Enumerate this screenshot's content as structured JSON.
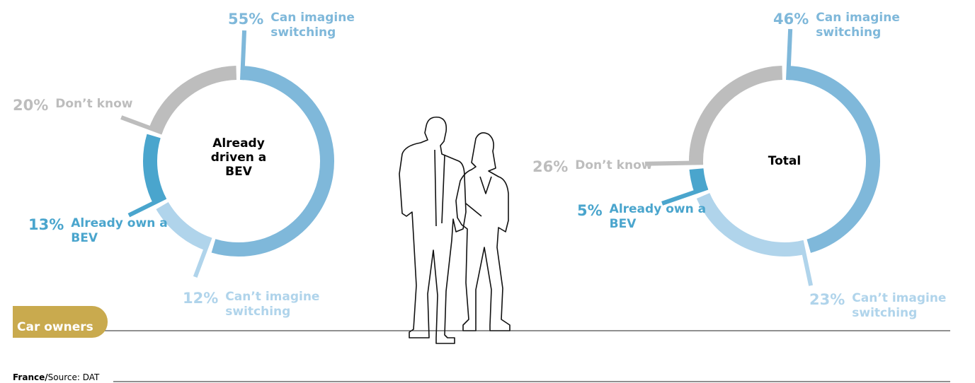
{
  "chart_data": [
    {
      "type": "pie",
      "center_label": "Already driven a BEV",
      "categories": [
        "Can imagine switching",
        "Can’t imagine switching",
        "Already own a BEV",
        "Don’t know"
      ],
      "values": [
        55,
        12,
        13,
        20
      ],
      "value_labels": [
        "55%",
        "12%",
        "13%",
        "20%"
      ],
      "colors": [
        "#7fb8da",
        "#b0d4eb",
        "#4aa5cd",
        "#bdbdbd"
      ]
    },
    {
      "type": "pie",
      "center_label": "Total",
      "categories": [
        "Can imagine switching",
        "Can’t imagine switching",
        "Already own a BEV",
        "Don’t know"
      ],
      "values": [
        46,
        23,
        5,
        26
      ],
      "value_labels": [
        "46%",
        "23%",
        "5%",
        "26%"
      ],
      "colors": [
        "#7fb8da",
        "#b0d4eb",
        "#4aa5cd",
        "#bdbdbd"
      ]
    }
  ],
  "tag": "Car owners",
  "footer": {
    "country": "France/",
    "source": "Source: DAT"
  }
}
